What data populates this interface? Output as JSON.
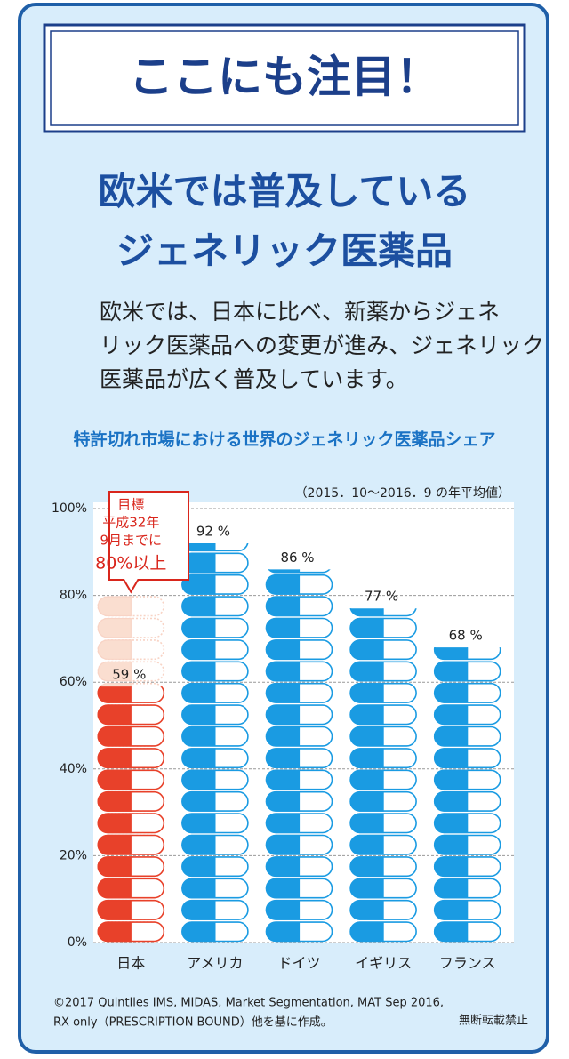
{
  "header": "ここにも注目！",
  "title": [
    "欧米では普及している",
    "ジェネリック医薬品"
  ],
  "body": [
    "欧米では、日本に比べ、新薬からジェネ",
    "リック医薬品への変更が進み、ジェネリック",
    "医薬品が広く普及しています。"
  ],
  "chart_data": {
    "type": "bar",
    "title": "特許切れ市場における世界のジェネリック医薬品シェア",
    "note": "（2015．10〜2016．9 の年平均値）",
    "categories": [
      "日本",
      "アメリカ",
      "ドイツ",
      "イギリス",
      "フランス"
    ],
    "values": [
      59,
      92,
      86,
      77,
      68
    ],
    "value_labels": [
      "59 %",
      "92 %",
      "86 %",
      "77 %",
      "68 %"
    ],
    "colors": [
      "#e8412a",
      "#1a9be2",
      "#1a9be2",
      "#1a9be2",
      "#1a9be2"
    ],
    "target_value": 80,
    "target_label": [
      "目標",
      "平成32年",
      "9月までに",
      "80%以上"
    ],
    "ylim": [
      0,
      100
    ],
    "yticks": [
      {
        "value": 0,
        "label": "0%"
      },
      {
        "value": 20,
        "label": "20%"
      },
      {
        "value": 40,
        "label": "40%"
      },
      {
        "value": 60,
        "label": "60%"
      },
      {
        "value": 80,
        "label": "80%"
      },
      {
        "value": 100,
        "label": "100%"
      }
    ],
    "grid": true
  },
  "source": [
    "©2017 Quintiles IMS, MIDAS, Market Segmentation, MAT Sep 2016,",
    "RX only（PRESCRIPTION BOUND）他を基に作成。"
  ],
  "rights": "無断転載禁止"
}
